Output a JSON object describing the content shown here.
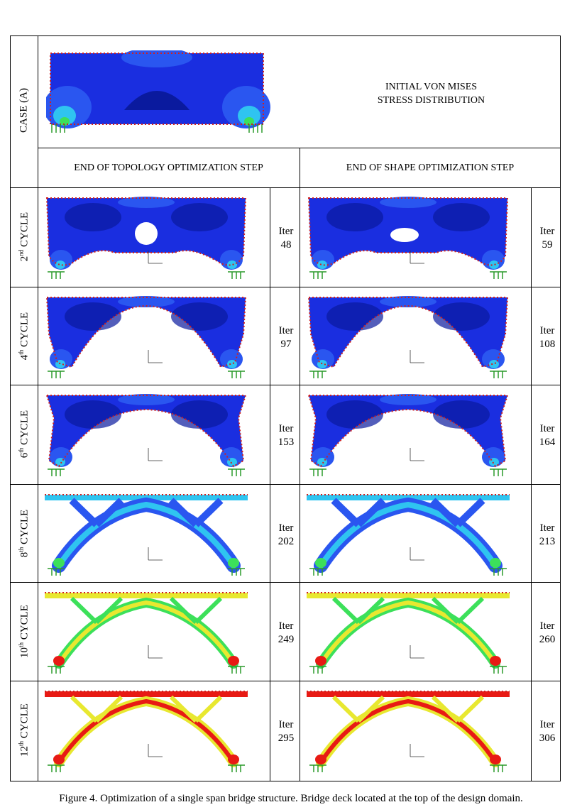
{
  "case": {
    "label": "CASE (A)",
    "initial_title_line1": "INITIAL VON MISES",
    "initial_title_line2": "STRESS DISTRIBUTION"
  },
  "headers": {
    "topology": "END OF TOPOLOGY OPTIMIZATION STEP",
    "shape": "END OF SHAPE OPTIMIZATION STEP"
  },
  "cycles": [
    {
      "num": "2",
      "sup": "nd",
      "word": "CYCLE",
      "iter_word": "Iter",
      "topo_iter": "48",
      "shape_iter": "59"
    },
    {
      "num": "4",
      "sup": "th",
      "word": "CYCLE",
      "iter_word": "Iter",
      "topo_iter": "97",
      "shape_iter": "108"
    },
    {
      "num": "6",
      "sup": "th",
      "word": "CYCLE",
      "iter_word": "Iter",
      "topo_iter": "153",
      "shape_iter": "164"
    },
    {
      "num": "8",
      "sup": "th",
      "word": "CYCLE",
      "iter_word": "Iter",
      "topo_iter": "202",
      "shape_iter": "213"
    },
    {
      "num": "10",
      "sup": "th",
      "word": "CYCLE",
      "iter_word": "Iter",
      "topo_iter": "249",
      "shape_iter": "260"
    },
    {
      "num": "12",
      "sup": "th",
      "word": "CYCLE",
      "iter_word": "Iter",
      "topo_iter": "295",
      "shape_iter": "306"
    }
  ],
  "caption": "Figure 4. Optimization of a single span bridge structure. Bridge deck located at the top of the design domain.",
  "colors": {
    "dark_blue": "#0a1a9e",
    "blue": "#1a2ee0",
    "mid_blue": "#2a56f0",
    "cyan": "#2fc4f0",
    "green": "#3ce05a",
    "yellow": "#e8e830",
    "red": "#e81a14",
    "support_green": "#2a9a2a"
  }
}
